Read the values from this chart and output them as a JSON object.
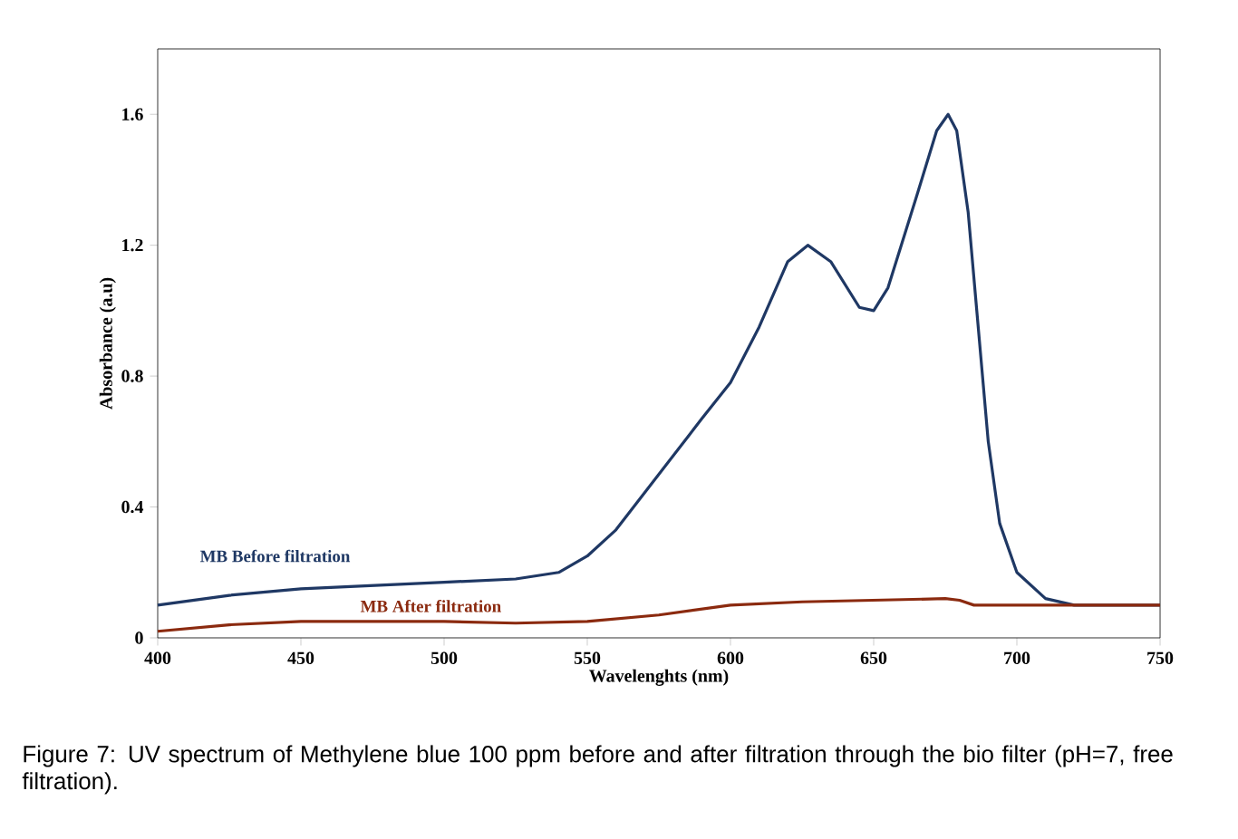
{
  "chart_data": {
    "type": "line",
    "xlabel": "Wavelenghts (nm)",
    "ylabel": "Absorbance (a.u)",
    "xlim": [
      400,
      750
    ],
    "xticks": [
      400,
      450,
      500,
      550,
      600,
      650,
      700,
      750
    ],
    "ylim": [
      0,
      1.8
    ],
    "yticks": [
      0,
      0.4,
      0.8,
      1.2,
      1.6
    ],
    "grid": false,
    "legend": false,
    "annotations": [
      "Figure 7: UV spectrum of Methylene blue 100 ppm before and after filtration through the bio filter (pH=7, free filtration)."
    ],
    "series": [
      {
        "name": "MB Before filtration",
        "color": "#1f3864",
        "x": [
          400,
          425,
          450,
          475,
          500,
          525,
          540,
          550,
          560,
          575,
          590,
          600,
          610,
          620,
          627,
          635,
          645,
          650,
          655,
          665,
          672,
          676,
          679,
          683,
          686,
          690,
          694,
          700,
          710,
          720,
          750
        ],
        "values": [
          0.1,
          0.13,
          0.15,
          0.16,
          0.17,
          0.18,
          0.2,
          0.25,
          0.33,
          0.5,
          0.67,
          0.78,
          0.95,
          1.15,
          1.2,
          1.15,
          1.01,
          1.0,
          1.07,
          1.35,
          1.55,
          1.6,
          1.55,
          1.3,
          1.0,
          0.6,
          0.35,
          0.2,
          0.12,
          0.1,
          0.1
        ]
      },
      {
        "name": "MB After filtration",
        "color": "#8b2a0f",
        "x": [
          400,
          425,
          450,
          500,
          525,
          550,
          575,
          600,
          625,
          650,
          675,
          680,
          685,
          700,
          750
        ],
        "values": [
          0.02,
          0.04,
          0.05,
          0.05,
          0.045,
          0.05,
          0.07,
          0.1,
          0.11,
          0.115,
          0.12,
          0.115,
          0.1,
          0.1,
          0.1
        ]
      }
    ]
  }
}
